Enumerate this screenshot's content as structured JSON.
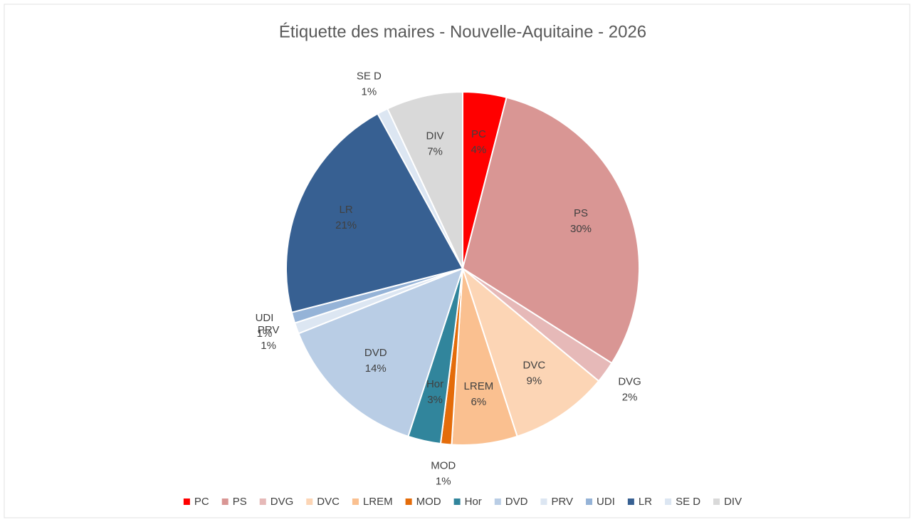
{
  "chart_data": {
    "type": "pie",
    "title": "Étiquette des maires - Nouvelle-Aquitaine - 2026",
    "categories": [
      "PC",
      "PS",
      "DVG",
      "DVC",
      "LREM",
      "MOD",
      "Hor",
      "DVD",
      "PRV",
      "UDI",
      "LR",
      "SE D",
      "DIV"
    ],
    "values": [
      4,
      30,
      2,
      9,
      6,
      1,
      3,
      14,
      1,
      1,
      21,
      1,
      7
    ],
    "value_labels": [
      "4%",
      "30%",
      "2%",
      "9%",
      "6%",
      "1%",
      "3%",
      "14%",
      "1%",
      "1%",
      "21%",
      "1%",
      "7%"
    ],
    "colors": [
      "#ff0000",
      "#d99694",
      "#e6b9b8",
      "#fcd5b5",
      "#fac090",
      "#e46c0a",
      "#31859c",
      "#b9cde5",
      "#dce6f2",
      "#95b3d7",
      "#376092",
      "#dce6f2",
      "#d9d9d9"
    ],
    "legend": "bottom"
  }
}
